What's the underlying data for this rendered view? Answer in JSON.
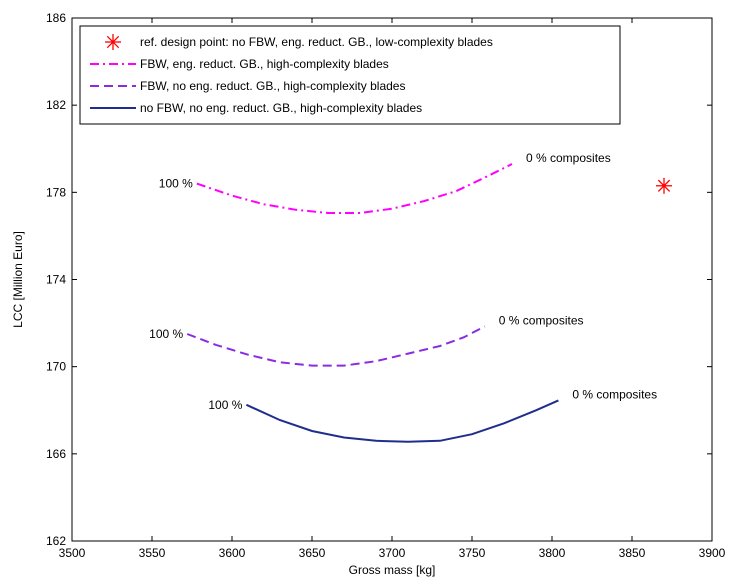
{
  "chart_data": {
    "type": "line",
    "xlabel": "Gross mass [kg]",
    "ylabel": "LCC [Million Euro]",
    "xlim": [
      3500,
      3900
    ],
    "ylim": [
      162,
      186
    ],
    "xticks": [
      3500,
      3550,
      3600,
      3650,
      3700,
      3750,
      3800,
      3850,
      3900
    ],
    "yticks": [
      162,
      166,
      170,
      174,
      178,
      182,
      186
    ],
    "grid": false,
    "legend_position": "top-left",
    "legend": [
      {
        "label": "ref. design point: no FBW, eng. reduct. GB., low-complexity blades",
        "color": "#ff0000",
        "style": "star"
      },
      {
        "label": "FBW, eng. reduct. GB., high-complexity blades",
        "color": "#ff00ff",
        "style": "dashdot"
      },
      {
        "label": "FBW, no eng. reduct. GB., high-complexity blades",
        "color": "#8a2be2",
        "style": "dashed"
      },
      {
        "label": "no FBW, no eng. reduct. GB., high-complexity blades",
        "color": "#1f2e8c",
        "style": "solid"
      }
    ],
    "series": [
      {
        "color": "#ff00ff",
        "style": "dashdot",
        "x": [
          3578,
          3600,
          3620,
          3640,
          3660,
          3680,
          3700,
          3720,
          3740,
          3760,
          3775
        ],
        "y": [
          178.4,
          177.85,
          177.45,
          177.2,
          177.05,
          177.05,
          177.25,
          177.6,
          178.05,
          178.75,
          179.3
        ],
        "start_label": "100 %",
        "end_label": "0 % composites"
      },
      {
        "color": "#8a2be2",
        "style": "dashed",
        "x": [
          3572,
          3590,
          3610,
          3630,
          3650,
          3670,
          3690,
          3710,
          3730,
          3745,
          3758
        ],
        "y": [
          171.5,
          171.0,
          170.55,
          170.2,
          170.05,
          170.05,
          170.25,
          170.6,
          170.95,
          171.35,
          171.85
        ],
        "start_label": "100 %",
        "end_label": "0 % composites"
      },
      {
        "color": "#1f2e8c",
        "style": "solid",
        "x": [
          3609,
          3630,
          3650,
          3670,
          3690,
          3710,
          3730,
          3750,
          3770,
          3790,
          3804
        ],
        "y": [
          168.25,
          167.55,
          167.05,
          166.75,
          166.6,
          166.55,
          166.6,
          166.9,
          167.4,
          168.0,
          168.45
        ],
        "start_label": "100 %",
        "end_label": "0 % composites"
      }
    ],
    "points": [
      {
        "x": 3870,
        "y": 178.3,
        "color": "#ff0000",
        "marker": "star"
      }
    ]
  }
}
